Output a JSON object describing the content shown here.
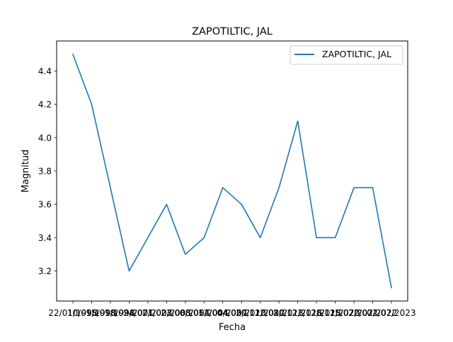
{
  "chart_data": {
    "type": "line",
    "title": "ZAPOTILTIC, JAL",
    "xlabel": "Fecha",
    "ylabel": "Magnitud",
    "ylim": [
      3.02,
      4.58
    ],
    "yticks": [
      3.2,
      3.4,
      3.6,
      3.8,
      4.0,
      4.2,
      4.4
    ],
    "ytick_labels": [
      "3.2",
      "3.4",
      "3.6",
      "3.8",
      "4.0",
      "4.2",
      "4.4"
    ],
    "x": [
      "22/01/1998",
      "10/09/1998",
      "15/09/1998",
      "18/09/2001",
      "24/07/2002",
      "21/02/2003",
      "23/08/2004",
      "08/05/2004",
      "12/04/2007",
      "04/05/2010",
      "20/12/2012",
      "12/08/2013",
      "20/12/2016",
      "21/12/2018",
      "28/12/2020",
      "15/07/2021",
      "22/07/2022",
      "02/07/2023"
    ],
    "series": [
      {
        "name": "ZAPOTILTIC, JAL",
        "color": "#1f77b4",
        "values": [
          4.5,
          4.2,
          3.7,
          3.2,
          3.4,
          3.6,
          3.3,
          3.4,
          3.7,
          3.6,
          3.4,
          3.7,
          4.1,
          3.4,
          3.4,
          3.7,
          3.7,
          3.1
        ]
      }
    ],
    "legend": {
      "position": "top-right"
    },
    "grid": false
  }
}
